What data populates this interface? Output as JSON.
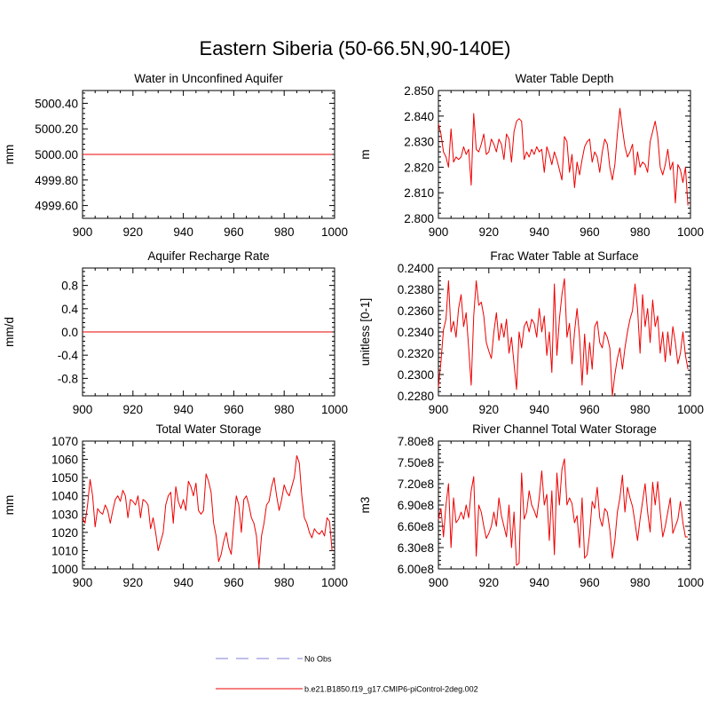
{
  "figure": {
    "title": "Eastern Siberia (50-66.5N,90-140E)"
  },
  "legend": {
    "items": [
      {
        "label": "No Obs",
        "color": "#9999dd",
        "style": "dashed"
      },
      {
        "label": "b.e21.B1850.f19_g17.CMIP6-piControl-2deg.002",
        "color": "#ee0000",
        "style": "solid"
      }
    ]
  },
  "colors": {
    "series": "#ee0000",
    "axis": "#000000"
  },
  "chart_data": [
    {
      "type": "line",
      "title": "Water in Unconfined Aquifer",
      "xlabel": "",
      "ylabel": "mm",
      "xlim": [
        900,
        1000
      ],
      "ylim": [
        4999.5,
        5000.5
      ],
      "x_ticks": [
        900,
        920,
        940,
        960,
        980,
        1000
      ],
      "x_tick_labels": [
        "900",
        "920",
        "940",
        "960",
        "980",
        "1000"
      ],
      "y_ticks": [
        4999.6,
        4999.8,
        5000.0,
        5000.2,
        5000.4
      ],
      "y_tick_labels": [
        "4999.60",
        "4999.80",
        "5000.00",
        "5000.20",
        "5000.40"
      ],
      "series": [
        {
          "name": "b.e21.B1850.f19_g17.CMIP6-piControl-2deg.002",
          "x_start": 900,
          "x_step": 1,
          "values": [
            5000,
            5000,
            5000,
            5000,
            5000,
            5000,
            5000,
            5000,
            5000,
            5000,
            5000,
            5000,
            5000,
            5000,
            5000,
            5000,
            5000,
            5000,
            5000,
            5000,
            5000,
            5000,
            5000,
            5000,
            5000,
            5000,
            5000,
            5000,
            5000,
            5000,
            5000,
            5000,
            5000,
            5000,
            5000,
            5000,
            5000,
            5000,
            5000,
            5000,
            5000,
            5000,
            5000,
            5000,
            5000,
            5000,
            5000,
            5000,
            5000,
            5000,
            5000,
            5000,
            5000,
            5000,
            5000,
            5000,
            5000,
            5000,
            5000,
            5000,
            5000,
            5000,
            5000,
            5000,
            5000,
            5000,
            5000,
            5000,
            5000,
            5000,
            5000,
            5000,
            5000,
            5000,
            5000,
            5000,
            5000,
            5000,
            5000,
            5000,
            5000,
            5000,
            5000,
            5000,
            5000,
            5000,
            5000,
            5000,
            5000,
            5000,
            5000,
            5000,
            5000,
            5000,
            5000,
            5000,
            5000,
            5000,
            5000,
            5000
          ]
        }
      ]
    },
    {
      "type": "line",
      "title": "Water Table Depth",
      "xlabel": "",
      "ylabel": "m",
      "xlim": [
        900,
        1000
      ],
      "ylim": [
        2.8,
        2.85
      ],
      "x_ticks": [
        900,
        920,
        940,
        960,
        980,
        1000
      ],
      "x_tick_labels": [
        "900",
        "920",
        "940",
        "960",
        "980",
        "1000"
      ],
      "y_ticks": [
        2.8,
        2.81,
        2.82,
        2.83,
        2.84,
        2.85
      ],
      "y_tick_labels": [
        "2.800",
        "2.810",
        "2.820",
        "2.830",
        "2.840",
        "2.850"
      ],
      "series": [
        {
          "name": "b.e21.B1850.f19_g17.CMIP6-piControl-2deg.002",
          "x_start": 900,
          "x_step": 1,
          "values": [
            2.837,
            2.833,
            2.826,
            2.824,
            2.82,
            2.835,
            2.822,
            2.824,
            2.823,
            2.824,
            2.828,
            2.825,
            2.827,
            2.813,
            2.841,
            2.827,
            2.826,
            2.829,
            2.833,
            2.825,
            2.826,
            2.831,
            2.829,
            2.826,
            2.831,
            2.829,
            2.823,
            2.833,
            2.831,
            2.822,
            2.834,
            2.838,
            2.839,
            2.838,
            2.823,
            2.826,
            2.824,
            2.827,
            2.825,
            2.828,
            2.826,
            2.827,
            2.818,
            2.828,
            2.825,
            2.821,
            2.826,
            2.823,
            2.819,
            2.815,
            2.832,
            2.83,
            2.818,
            2.825,
            2.812,
            2.822,
            2.817,
            2.823,
            2.828,
            2.83,
            2.831,
            2.822,
            2.826,
            2.824,
            2.818,
            2.826,
            2.831,
            2.829,
            2.82,
            2.815,
            2.821,
            2.833,
            2.843,
            2.835,
            2.828,
            2.824,
            2.826,
            2.829,
            2.817,
            2.826,
            2.82,
            2.822,
            2.821,
            2.818,
            2.83,
            2.834,
            2.838,
            2.832,
            2.82,
            2.817,
            2.821,
            2.827,
            2.819,
            2.822,
            2.806,
            2.821,
            2.819,
            2.814,
            2.82,
            2.805
          ]
        }
      ]
    },
    {
      "type": "line",
      "title": "Aquifer Recharge Rate",
      "xlabel": "",
      "ylabel": "mm/d",
      "xlim": [
        900,
        1000
      ],
      "ylim": [
        -1.1,
        1.1
      ],
      "x_ticks": [
        900,
        920,
        940,
        960,
        980,
        1000
      ],
      "x_tick_labels": [
        "900",
        "920",
        "940",
        "960",
        "980",
        "1000"
      ],
      "y_ticks": [
        -0.8,
        -0.4,
        0.0,
        0.4,
        0.8
      ],
      "y_tick_labels": [
        "-0.8",
        "-0.4",
        "0.0",
        "0.4",
        "0.8"
      ],
      "series": [
        {
          "name": "b.e21.B1850.f19_g17.CMIP6-piControl-2deg.002",
          "x_start": 900,
          "x_step": 1,
          "values": [
            0,
            0,
            0,
            0,
            0,
            0,
            0,
            0,
            0,
            0,
            0,
            0,
            0,
            0,
            0,
            0,
            0,
            0,
            0,
            0,
            0,
            0,
            0,
            0,
            0,
            0,
            0,
            0,
            0,
            0,
            0,
            0,
            0,
            0,
            0,
            0,
            0,
            0,
            0,
            0,
            0,
            0,
            0,
            0,
            0,
            0,
            0,
            0,
            0,
            0,
            0,
            0,
            0,
            0,
            0,
            0,
            0,
            0,
            0,
            0,
            0,
            0,
            0,
            0,
            0,
            0,
            0,
            0,
            0,
            0,
            0,
            0,
            0,
            0,
            0,
            0,
            0,
            0,
            0,
            0,
            0,
            0,
            0,
            0,
            0,
            0,
            0,
            0,
            0,
            0,
            0,
            0,
            0,
            0,
            0,
            0,
            0,
            0,
            0,
            0
          ]
        }
      ]
    },
    {
      "type": "line",
      "title": "Frac Water Table at Surface",
      "xlabel": "",
      "ylabel": "unitless [0-1]",
      "xlim": [
        900,
        1000
      ],
      "ylim": [
        0.228,
        0.24
      ],
      "x_ticks": [
        900,
        920,
        940,
        960,
        980,
        1000
      ],
      "x_tick_labels": [
        "900",
        "920",
        "940",
        "960",
        "980",
        "1000"
      ],
      "y_ticks": [
        0.228,
        0.23,
        0.232,
        0.234,
        0.236,
        0.238,
        0.24
      ],
      "y_tick_labels": [
        "0.2280",
        "0.2300",
        "0.2320",
        "0.2340",
        "0.2360",
        "0.2380",
        "0.2400"
      ],
      "series": [
        {
          "name": "b.e21.B1850.f19_g17.CMIP6-piControl-2deg.002",
          "x_start": 900,
          "x_step": 1,
          "values": [
            0.2288,
            0.2312,
            0.2342,
            0.2352,
            0.2388,
            0.234,
            0.235,
            0.2335,
            0.2362,
            0.2375,
            0.2345,
            0.2358,
            0.2325,
            0.229,
            0.2355,
            0.2388,
            0.2365,
            0.2368,
            0.2355,
            0.233,
            0.2322,
            0.2315,
            0.234,
            0.2358,
            0.2332,
            0.2348,
            0.2335,
            0.2352,
            0.232,
            0.2335,
            0.231,
            0.2286,
            0.234,
            0.2325,
            0.2345,
            0.235,
            0.234,
            0.2352,
            0.2348,
            0.2335,
            0.2362,
            0.234,
            0.2355,
            0.2318,
            0.234,
            0.2302,
            0.2385,
            0.2318,
            0.2352,
            0.2375,
            0.239,
            0.2335,
            0.2348,
            0.231,
            0.234,
            0.2362,
            0.2335,
            0.229,
            0.2338,
            0.23,
            0.233,
            0.2305,
            0.2345,
            0.235,
            0.233,
            0.2325,
            0.234,
            0.2335,
            0.2325,
            0.228,
            0.23,
            0.2315,
            0.2325,
            0.2305,
            0.2325,
            0.234,
            0.2352,
            0.236,
            0.2385,
            0.2362,
            0.232,
            0.2375,
            0.2345,
            0.2362,
            0.233,
            0.237,
            0.2345,
            0.2355,
            0.232,
            0.234,
            0.2312,
            0.234,
            0.2318,
            0.2345,
            0.233,
            0.231,
            0.232,
            0.234,
            0.2318,
            0.2305
          ]
        }
      ]
    },
    {
      "type": "line",
      "title": "Total Water Storage",
      "xlabel": "",
      "ylabel": "mm",
      "xlim": [
        900,
        1000
      ],
      "ylim": [
        1000,
        1070
      ],
      "x_ticks": [
        900,
        920,
        940,
        960,
        980,
        1000
      ],
      "x_tick_labels": [
        "900",
        "920",
        "940",
        "960",
        "980",
        "1000"
      ],
      "y_ticks": [
        1000,
        1010,
        1020,
        1030,
        1040,
        1050,
        1060,
        1070
      ],
      "y_tick_labels": [
        "1000",
        "1010",
        "1020",
        "1030",
        "1040",
        "1050",
        "1060",
        "1070"
      ],
      "series": [
        {
          "name": "b.e21.B1850.f19_g17.CMIP6-piControl-2deg.002",
          "x_start": 900,
          "x_step": 1,
          "values": [
            1028,
            1025,
            1035,
            1049,
            1040,
            1023,
            1033,
            1031,
            1030,
            1035,
            1032,
            1025,
            1032,
            1038,
            1040,
            1037,
            1043,
            1040,
            1028,
            1038,
            1037,
            1035,
            1040,
            1028,
            1038,
            1037,
            1035,
            1022,
            1028,
            1020,
            1010,
            1015,
            1020,
            1035,
            1040,
            1042,
            1025,
            1045,
            1037,
            1033,
            1038,
            1032,
            1048,
            1045,
            1040,
            1047,
            1032,
            1030,
            1032,
            1052,
            1048,
            1042,
            1025,
            1018,
            1004,
            1008,
            1015,
            1020,
            1012,
            1008,
            1025,
            1040,
            1035,
            1020,
            1038,
            1040,
            1035,
            1028,
            1025,
            1018,
            1001,
            1018,
            1025,
            1035,
            1037,
            1045,
            1050,
            1040,
            1032,
            1038,
            1046,
            1042,
            1040,
            1045,
            1050,
            1062,
            1058,
            1040,
            1028,
            1025,
            1020,
            1017,
            1022,
            1020,
            1019,
            1021,
            1018,
            1028,
            1026,
            1010
          ]
        }
      ]
    },
    {
      "type": "line",
      "title": "River Channel Total Water Storage",
      "xlabel": "",
      "ylabel": "m3",
      "xlim": [
        900,
        1000
      ],
      "ylim": [
        600000000,
        780000000
      ],
      "x_ticks": [
        900,
        920,
        940,
        960,
        980,
        1000
      ],
      "x_tick_labels": [
        "900",
        "920",
        "940",
        "960",
        "980",
        "1000"
      ],
      "y_ticks": [
        600000000,
        630000000,
        660000000,
        690000000,
        720000000,
        750000000,
        780000000
      ],
      "y_tick_labels": [
        "6.00e8",
        "6.30e8",
        "6.60e8",
        "6.90e8",
        "7.20e8",
        "7.50e8",
        "7.80e8"
      ],
      "series": [
        {
          "name": "b.e21.B1850.f19_g17.CMIP6-piControl-2deg.002",
          "x_start": 900,
          "x_step": 1,
          "values": [
            670000000,
            685000000,
            645000000,
            690000000,
            720000000,
            630000000,
            700000000,
            665000000,
            670000000,
            680000000,
            670000000,
            690000000,
            672000000,
            710000000,
            730000000,
            618000000,
            690000000,
            680000000,
            660000000,
            643000000,
            650000000,
            660000000,
            680000000,
            660000000,
            700000000,
            675000000,
            660000000,
            645000000,
            690000000,
            630000000,
            680000000,
            605000000,
            608000000,
            735000000,
            670000000,
            680000000,
            710000000,
            690000000,
            682000000,
            672000000,
            700000000,
            738000000,
            690000000,
            705000000,
            640000000,
            710000000,
            620000000,
            735000000,
            690000000,
            740000000,
            755000000,
            690000000,
            700000000,
            692000000,
            665000000,
            675000000,
            630000000,
            700000000,
            615000000,
            620000000,
            650000000,
            695000000,
            685000000,
            715000000,
            672000000,
            660000000,
            685000000,
            680000000,
            655000000,
            615000000,
            640000000,
            680000000,
            700000000,
            732000000,
            680000000,
            715000000,
            700000000,
            688000000,
            665000000,
            640000000,
            670000000,
            695000000,
            720000000,
            680000000,
            652000000,
            722000000,
            690000000,
            723000000,
            680000000,
            645000000,
            660000000,
            680000000,
            700000000,
            650000000,
            660000000,
            670000000,
            695000000,
            665000000,
            645000000,
            645000000
          ]
        }
      ]
    }
  ]
}
